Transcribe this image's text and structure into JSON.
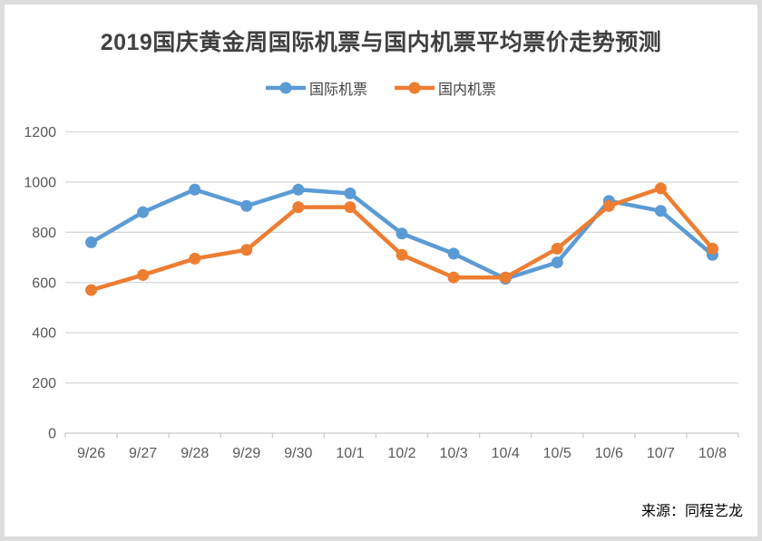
{
  "page": {
    "title": "2019国庆黄金周国际机票与国内机票平均票价走势预测",
    "source": "来源：同程艺龙"
  },
  "legend": {
    "items": [
      {
        "label": "国际机票",
        "color": "#5B9BD5"
      },
      {
        "label": "国内机票",
        "color": "#ED7D31"
      }
    ]
  },
  "chart_data": {
    "type": "line",
    "title": "2019国庆黄金周国际机票与国内机票平均票价走势预测",
    "categories": [
      "9/26",
      "9/27",
      "9/28",
      "9/29",
      "9/30",
      "10/1",
      "10/2",
      "10/3",
      "10/4",
      "10/5",
      "10/6",
      "10/7",
      "10/8"
    ],
    "series": [
      {
        "name": "国际机票",
        "color": "#5B9BD5",
        "values": [
          760,
          880,
          970,
          905,
          970,
          955,
          795,
          715,
          615,
          680,
          925,
          885,
          710
        ]
      },
      {
        "name": "国内机票",
        "color": "#ED7D31",
        "values": [
          570,
          630,
          695,
          730,
          900,
          900,
          710,
          620,
          620,
          735,
          905,
          975,
          735
        ]
      }
    ],
    "xlabel": "",
    "ylabel": "",
    "ylim": [
      0,
      1200
    ],
    "yticks": [
      0,
      200,
      400,
      600,
      800,
      1000,
      1200
    ],
    "grid": true,
    "legend_position": "top",
    "source": "来源：同程艺龙",
    "style": {
      "gridline_color": "#D9D9D9",
      "axis_color": "#C9C9C9",
      "tick_label_color": "#595959",
      "line_width": 4.5,
      "marker_radius": 6.5
    }
  }
}
